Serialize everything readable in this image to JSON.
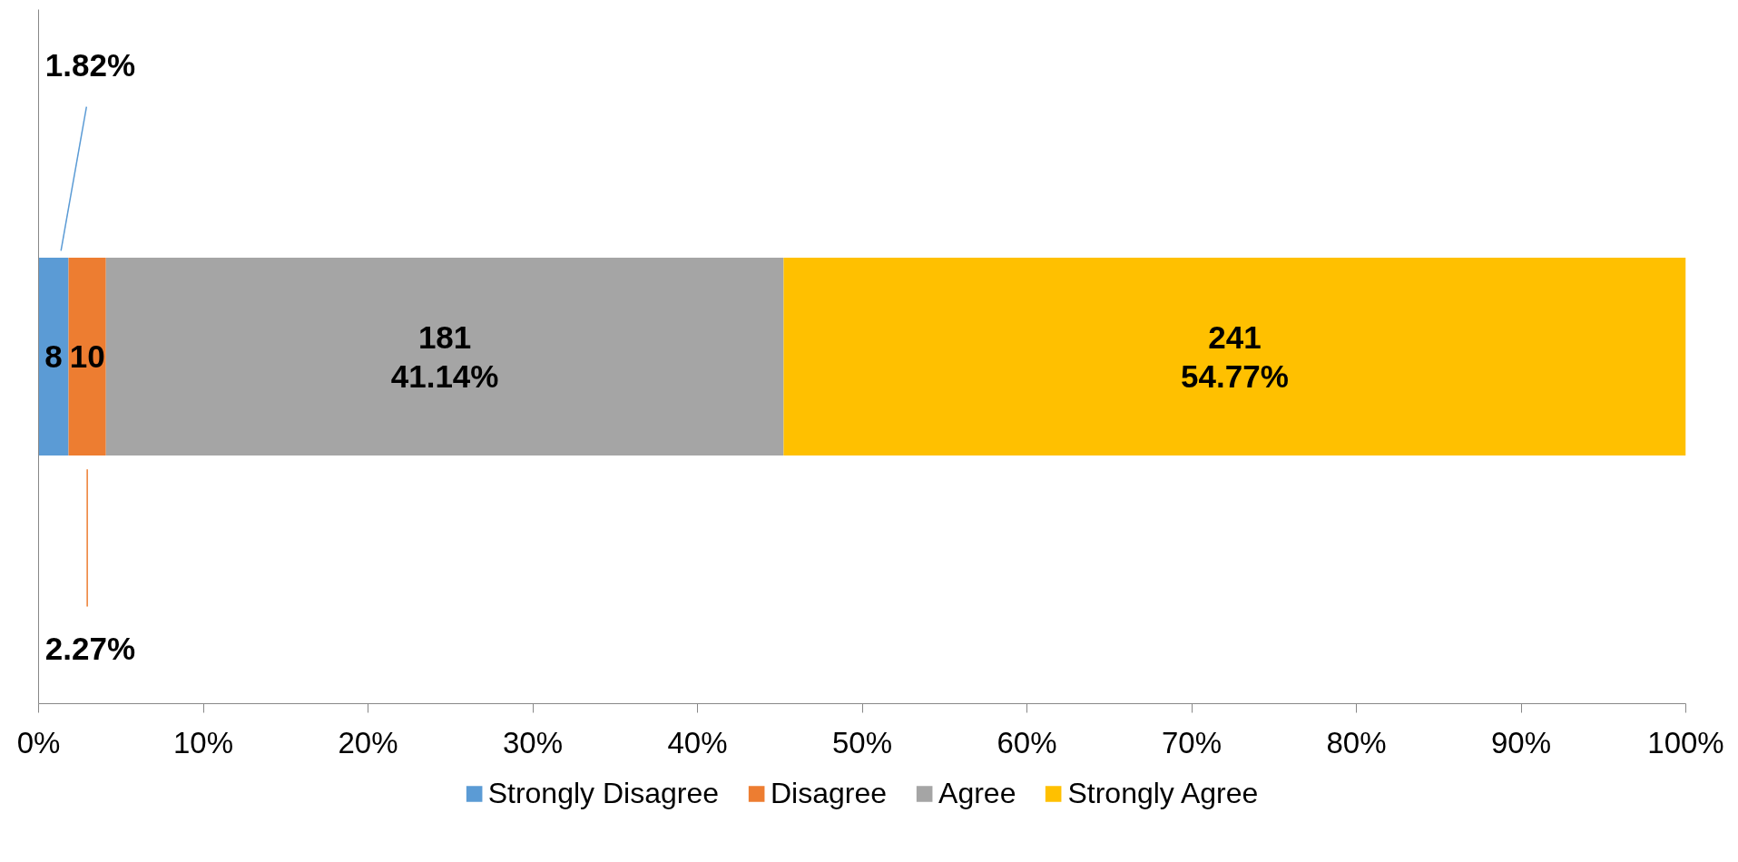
{
  "chart_data": {
    "type": "bar",
    "orientation": "horizontal",
    "stacked": true,
    "categories": [
      null
    ],
    "series": [
      {
        "name": "Strongly Disagree",
        "color": "#5b9bd5",
        "values": [
          1.82
        ],
        "value_labels": [
          "8\n1.82%"
        ]
      },
      {
        "name": "Disagree",
        "color": "#ed7d31",
        "values": [
          2.27
        ],
        "value_labels": [
          "10\n2.27%"
        ]
      },
      {
        "name": "Agree",
        "color": "#a5a5a5",
        "values": [
          41.14
        ],
        "value_labels": [
          "181\n41.14%"
        ]
      },
      {
        "name": "Strongly Agree",
        "color": "#ffc000",
        "values": [
          54.77
        ],
        "value_labels": [
          "241\n54.77%"
        ]
      }
    ],
    "xlim": [
      0,
      100
    ],
    "xticks": [
      {
        "value": 0,
        "label": "0%"
      },
      {
        "value": 10,
        "label": "10%"
      },
      {
        "value": 20,
        "label": "20%"
      },
      {
        "value": 30,
        "label": "30%"
      },
      {
        "value": 40,
        "label": "40%"
      },
      {
        "value": 50,
        "label": "50%"
      },
      {
        "value": 60,
        "label": "60%"
      },
      {
        "value": 70,
        "label": "70%"
      },
      {
        "value": 80,
        "label": "80%"
      },
      {
        "value": 90,
        "label": "90%"
      },
      {
        "value": 100,
        "label": "100%"
      }
    ],
    "tick_labels": "x",
    "grid": false,
    "legend": "bottom"
  }
}
